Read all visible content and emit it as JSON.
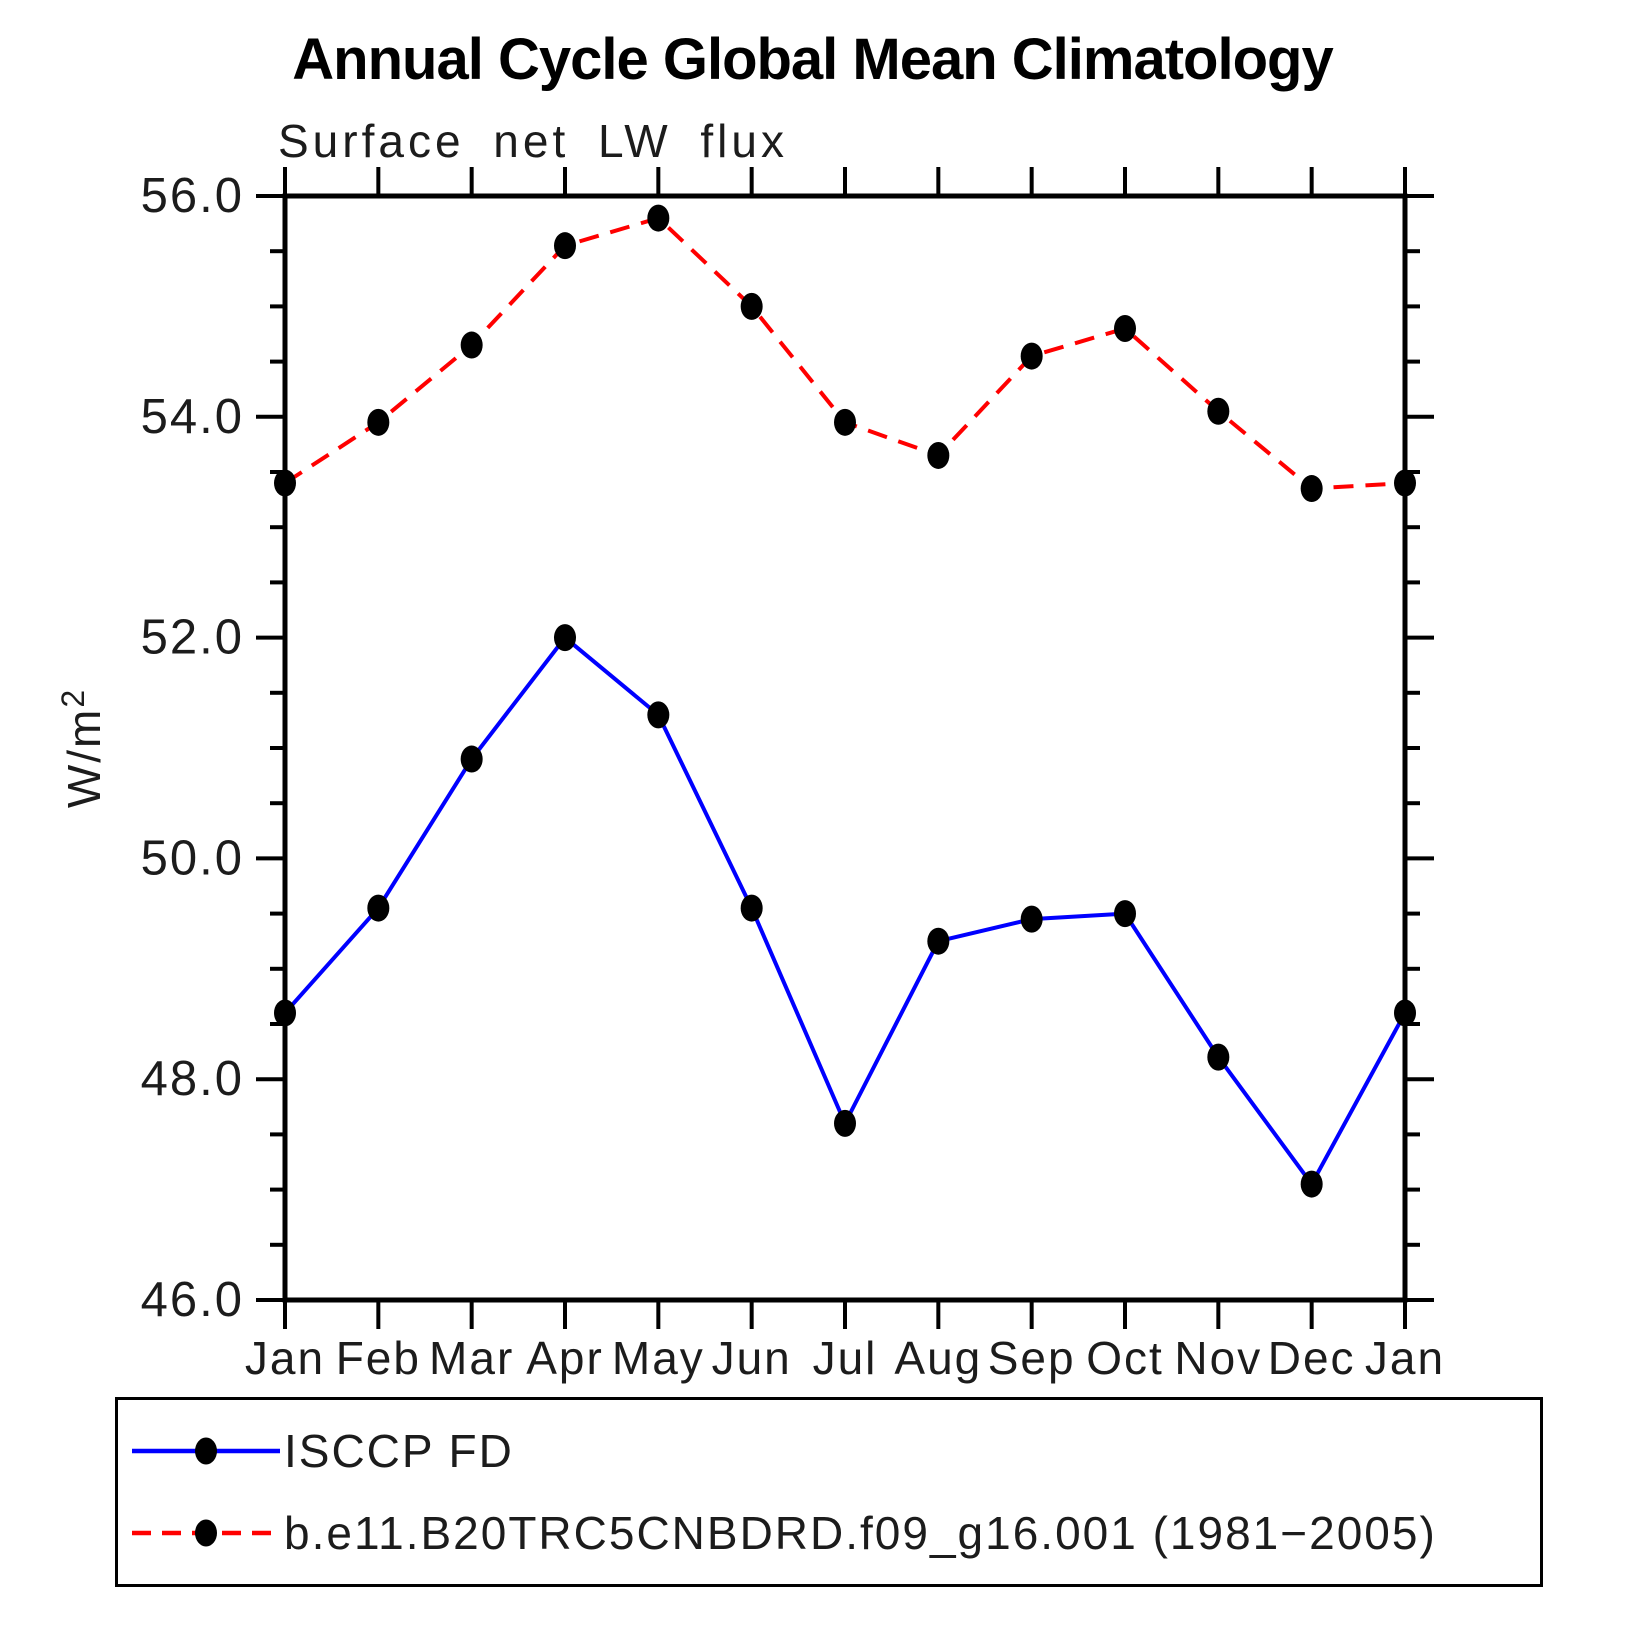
{
  "title": "Annual Cycle Global Mean Climatology",
  "chart_data": {
    "type": "line",
    "title": "Annual Cycle Global Mean Climatology",
    "subtitle": "Surface net LW flux",
    "ylabel": "W/m²",
    "xlabel": "",
    "ylim": [
      46.0,
      56.0
    ],
    "ytick_major_interval": 2.0,
    "ytick_minor_interval": 0.5,
    "ytick_label_format": "one-decimal",
    "grid": false,
    "legend_position": "bottom-box",
    "categories": [
      "Jan",
      "Feb",
      "Mar",
      "Apr",
      "May",
      "Jun",
      "Jul",
      "Aug",
      "Sep",
      "Oct",
      "Nov",
      "Dec",
      "Jan"
    ],
    "series": [
      {
        "name": "ISCCP FD",
        "color": "#0000ff",
        "style": "solid",
        "marker": "filled-circle",
        "marker_color": "#000000",
        "values": [
          48.6,
          49.55,
          50.9,
          52.0,
          51.3,
          49.55,
          47.6,
          49.25,
          49.45,
          49.5,
          48.2,
          47.05,
          48.6
        ]
      },
      {
        "name": "b.e11.B20TRC5CNBDRD.f09_g16.001 (1981−2005)",
        "color": "#ff0000",
        "style": "dashed",
        "marker": "filled-circle",
        "marker_color": "#000000",
        "values": [
          53.4,
          53.95,
          54.65,
          55.55,
          55.8,
          55.0,
          53.95,
          53.65,
          54.55,
          54.8,
          54.05,
          53.35,
          53.4
        ]
      }
    ]
  }
}
